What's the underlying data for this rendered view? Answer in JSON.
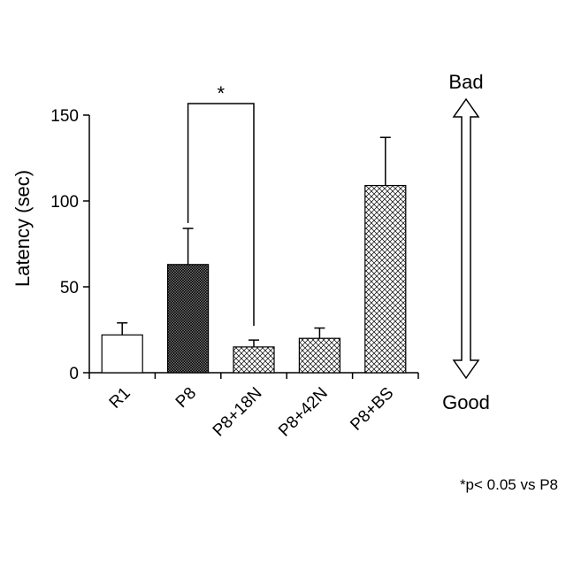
{
  "chart_data": {
    "type": "bar",
    "ylabel": "Latency (sec)",
    "ylim": [
      0,
      150
    ],
    "yticks": [
      "0",
      "50",
      "100",
      "150"
    ],
    "categories": [
      "R1",
      "P8",
      "P8+18N",
      "P8+42N",
      "P8+BS"
    ],
    "values": [
      22,
      63,
      15,
      20,
      109
    ],
    "errors": [
      7,
      21,
      4,
      6,
      28
    ],
    "fills": [
      "white",
      "dense-crosshatch",
      "crosshatch",
      "crosshatch",
      "crosshatch"
    ],
    "significance": {
      "from": "P8",
      "to": "P8+18N",
      "marker": "*"
    },
    "arrow": {
      "top_label": "Bad",
      "bottom_label": "Good"
    },
    "footnote": "*p< 0.05 vs P8"
  }
}
